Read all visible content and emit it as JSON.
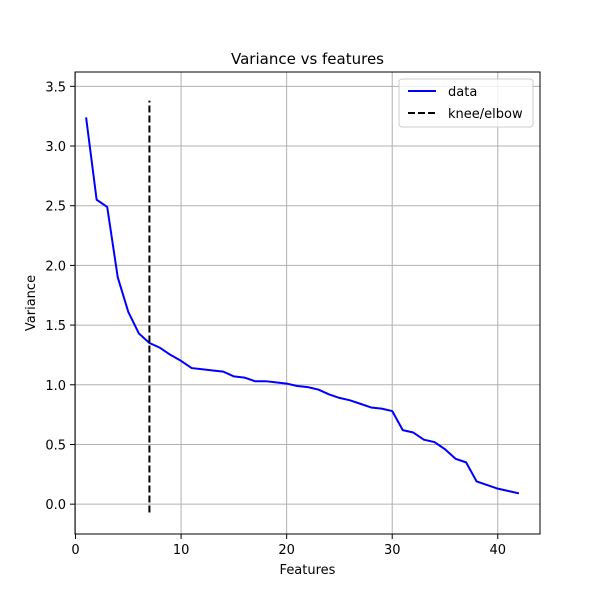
{
  "chart_data": {
    "type": "line",
    "title": "Variance vs features",
    "xlabel": "Features",
    "ylabel": "Variance",
    "xlim": [
      -0.05,
      44
    ],
    "ylim": [
      -0.25,
      3.62
    ],
    "xticks": [
      0,
      10,
      20,
      30,
      40
    ],
    "yticks": [
      0.0,
      0.5,
      1.0,
      1.5,
      2.0,
      2.5,
      3.0,
      3.5
    ],
    "xtick_labels": [
      "0",
      "10",
      "20",
      "30",
      "40"
    ],
    "ytick_labels": [
      "0.0",
      "0.5",
      "1.0",
      "1.5",
      "2.0",
      "2.5",
      "3.0",
      "3.5"
    ],
    "grid": true,
    "legend_position": "top-right",
    "series": [
      {
        "name": "data",
        "color": "#0000ff",
        "style": "solid",
        "x": [
          1,
          2,
          3,
          4,
          5,
          6,
          7,
          8,
          9,
          10,
          11,
          12,
          13,
          14,
          15,
          16,
          17,
          18,
          19,
          20,
          21,
          22,
          23,
          24,
          25,
          26,
          27,
          28,
          29,
          30,
          31,
          32,
          33,
          34,
          35,
          36,
          37,
          38,
          39,
          40,
          41,
          42
        ],
        "y": [
          3.24,
          2.55,
          2.49,
          1.9,
          1.61,
          1.43,
          1.35,
          1.31,
          1.25,
          1.2,
          1.14,
          1.13,
          1.12,
          1.11,
          1.07,
          1.06,
          1.03,
          1.03,
          1.02,
          1.01,
          0.99,
          0.98,
          0.96,
          0.92,
          0.89,
          0.87,
          0.84,
          0.81,
          0.8,
          0.78,
          0.62,
          0.6,
          0.54,
          0.52,
          0.46,
          0.38,
          0.35,
          0.19,
          0.16,
          0.13,
          0.11,
          0.09
        ]
      },
      {
        "name": "knee/elbow",
        "color": "#000000",
        "style": "dashed",
        "x": [
          7,
          7
        ],
        "y": [
          -0.07,
          3.38
        ]
      }
    ]
  }
}
